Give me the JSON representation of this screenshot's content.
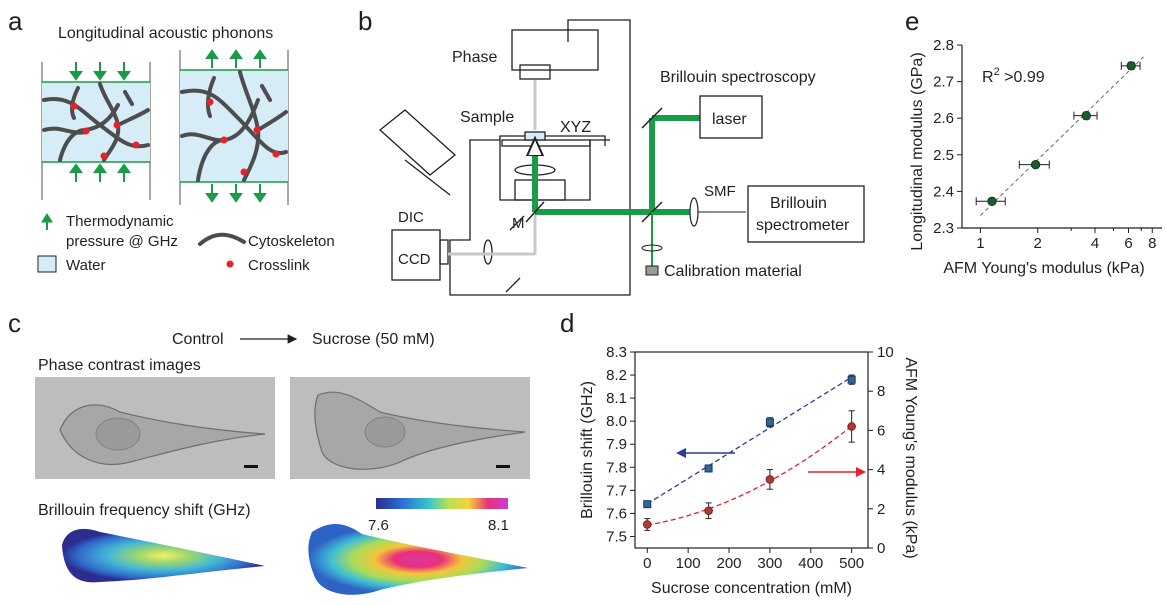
{
  "panels": {
    "a": {
      "label": "a",
      "title": "Longitudinal acoustic phonons",
      "legend": {
        "pressure_line1": "Thermodynamic",
        "pressure_line2": "pressure @ GHz",
        "cytoskeleton": "Cytoskeleton",
        "water": "Water",
        "crosslink": "Crosslink"
      },
      "colors": {
        "arrow": "#1a9b48",
        "water": "#d6ecf7",
        "crosslink": "#e8202a",
        "fiber": "#4d4d4f"
      }
    },
    "b": {
      "label": "b",
      "phase": "Phase",
      "brillouin_spectroscopy": "Brillouin spectroscopy",
      "sample": "Sample",
      "xyz": "XYZ",
      "laser": "laser",
      "smf": "SMF",
      "spectrometer_line1": "Brillouin",
      "spectrometer_line2": "spectrometer",
      "m": "M",
      "dic": "DIC",
      "ccd": "CCD",
      "calibration": "Calibration material",
      "colors": {
        "beam": "#1a9b48",
        "grey_path": "#c8c8c8"
      }
    },
    "c": {
      "label": "c",
      "control": "Control",
      "sucrose": "Sucrose (50 mM)",
      "phase_title": "Phase contrast images",
      "brillouin_title": "Brillouin frequency shift (GHz)",
      "colorbar_min": "7.6",
      "colorbar_max": "8.1"
    },
    "d": {
      "label": "d",
      "colors": {
        "brillouin": "#2b3e97",
        "afm": "#e8202a"
      }
    },
    "e": {
      "label": "e",
      "r2_base": "R",
      "r2_sup": "2",
      "r2_rest": " >0.99"
    }
  },
  "chart_data": [
    {
      "panel": "d",
      "type": "scatter",
      "xlabel": "Sucrose concentration (mM)",
      "ylabel": "Brillouin shift (GHz)",
      "y2label": "AFM Young's modulus (kPa)",
      "xlim": [
        -30,
        540
      ],
      "ylim": [
        7.45,
        8.3
      ],
      "y2lim": [
        0,
        10
      ],
      "xticks": [
        0,
        100,
        200,
        300,
        400,
        500
      ],
      "yticks": [
        7.5,
        7.6,
        7.7,
        7.8,
        7.9,
        8.0,
        8.1,
        8.2,
        8.3
      ],
      "yticklabels": [
        "7.5",
        "7.6",
        "7.7",
        "7.8",
        "7.9",
        "8.0",
        "8.1",
        "8.2",
        "8.3"
      ],
      "y2ticks": [
        0,
        2,
        4,
        6,
        8,
        10
      ],
      "series": [
        {
          "axis": "left",
          "x": [
            0,
            150,
            300,
            500
          ],
          "y": [
            7.64,
            7.795,
            7.995,
            8.18
          ],
          "err": [
            0.005,
            0.01,
            0.02,
            0.02
          ],
          "color": "#2b3e97",
          "marker": "square",
          "fit": "linear"
        },
        {
          "axis": "right",
          "x": [
            0,
            150,
            300,
            500
          ],
          "y": [
            1.2,
            1.9,
            3.5,
            6.2
          ],
          "err": [
            0.3,
            0.4,
            0.5,
            0.8
          ],
          "color": "#e8202a",
          "marker": "circle",
          "fit": "quadratic"
        }
      ]
    },
    {
      "panel": "e",
      "type": "scatter",
      "xscale": "log",
      "xlabel": "AFM Young's modulus (kPa)",
      "ylabel": "Longitudinal modulus (GPa)",
      "xlim": [
        0.8,
        9
      ],
      "ylim": [
        2.3,
        2.8
      ],
      "xticks": [
        1,
        2,
        4,
        6,
        8
      ],
      "yticks": [
        2.3,
        2.4,
        2.5,
        2.6,
        2.7,
        2.8
      ],
      "yticklabels": [
        "2.3",
        "2.4",
        "2.5",
        "2.6",
        "2.7",
        "2.8"
      ],
      "x": [
        1.15,
        1.95,
        3.6,
        6.2
      ],
      "y": [
        2.373,
        2.473,
        2.607,
        2.743
      ],
      "xerr_low": [
        0.95,
        1.6,
        3.1,
        5.5
      ],
      "xerr_high": [
        1.35,
        2.3,
        4.1,
        6.9
      ],
      "yerr": [
        0.005,
        0.005,
        0.01,
        0.01
      ],
      "color": "#1e5a2d",
      "fit": "linear"
    }
  ]
}
